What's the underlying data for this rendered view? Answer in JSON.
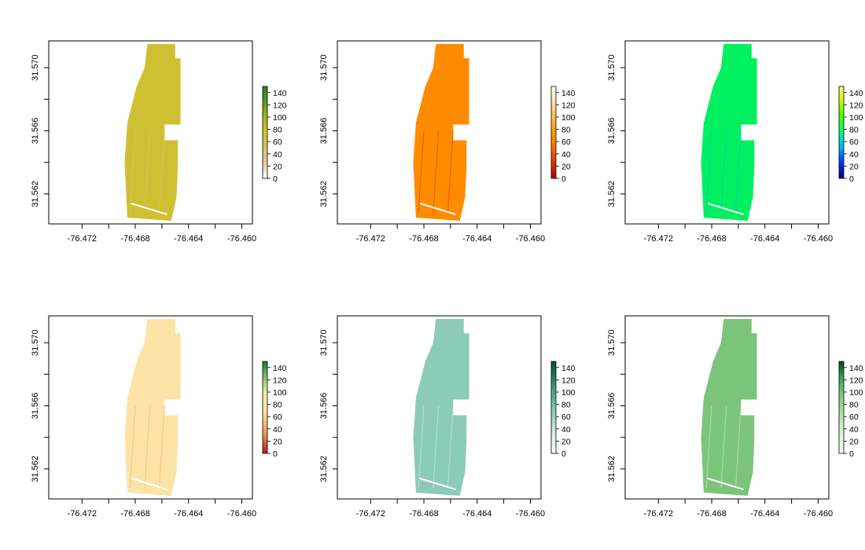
{
  "chart_data": [
    {
      "type": "heatmap",
      "xlim": [
        -76.4745,
        -76.4592
      ],
      "ylim": [
        31.5601,
        31.5717
      ],
      "x_ticks": [
        -76.472,
        -76.468,
        -76.464,
        -76.46
      ],
      "x_tick_labels": [
        "-76.472",
        "-76.468",
        "-76.464",
        "-76.460"
      ],
      "x_minor_ticks": [
        -76.47,
        -76.466,
        -76.462
      ],
      "y_ticks": [
        31.562,
        31.566,
        31.57
      ],
      "y_tick_labels": [
        "31.562",
        "31.566",
        "31.570"
      ],
      "y_minor_ticks": [
        31.564,
        31.568
      ],
      "legend": {
        "range": [
          0,
          150
        ],
        "ticks": [
          0,
          20,
          40,
          60,
          80,
          100,
          120,
          140
        ],
        "tick_labels": [
          "0",
          "20",
          "40",
          "60",
          "80",
          "100",
          "120",
          "140"
        ],
        "colors": [
          "#ffffff",
          "#e8c8a0",
          "#d8c060",
          "#cfc530",
          "#a0b820",
          "#5a9a20",
          "#2e7d1f"
        ]
      },
      "field_typical_value": 65,
      "field_color": "#cfc033"
    },
    {
      "type": "heatmap",
      "xlim": [
        -76.4745,
        -76.4592
      ],
      "ylim": [
        31.5601,
        31.5717
      ],
      "x_ticks": [
        -76.472,
        -76.468,
        -76.464,
        -76.46
      ],
      "x_tick_labels": [
        "-76.472",
        "-76.468",
        "-76.464",
        "-76.460"
      ],
      "x_minor_ticks": [
        -76.47,
        -76.466,
        -76.462
      ],
      "y_ticks": [
        31.562,
        31.566,
        31.57
      ],
      "y_tick_labels": [
        "31.562",
        "31.566",
        "31.570"
      ],
      "y_minor_ticks": [
        31.564,
        31.568
      ],
      "legend": {
        "range": [
          0,
          150
        ],
        "ticks": [
          0,
          20,
          40,
          60,
          80,
          100,
          120,
          140
        ],
        "tick_labels": [
          "0",
          "20",
          "40",
          "60",
          "80",
          "100",
          "120",
          "140"
        ],
        "colors": [
          "#b20000",
          "#e03000",
          "#ff6a00",
          "#ff9a00",
          "#ffc040",
          "#ffe4a0",
          "#ffffff"
        ]
      },
      "field_typical_value": 45,
      "field_color": "#ff8c00"
    },
    {
      "type": "heatmap",
      "xlim": [
        -76.4745,
        -76.4592
      ],
      "ylim": [
        31.5601,
        31.5717
      ],
      "x_ticks": [
        -76.472,
        -76.468,
        -76.464,
        -76.46
      ],
      "x_tick_labels": [
        "-76.472",
        "-76.468",
        "-76.464",
        "-76.460"
      ],
      "x_minor_ticks": [
        -76.47,
        -76.466,
        -76.462
      ],
      "y_ticks": [
        31.562,
        31.566,
        31.57
      ],
      "y_tick_labels": [
        "31.562",
        "31.566",
        "31.570"
      ],
      "y_minor_ticks": [
        31.564,
        31.568
      ],
      "legend": {
        "range": [
          0,
          150
        ],
        "ticks": [
          0,
          20,
          40,
          60,
          80,
          100,
          120,
          140
        ],
        "tick_labels": [
          "0",
          "20",
          "40",
          "60",
          "80",
          "100",
          "120",
          "140"
        ],
        "colors": [
          "#000080",
          "#0030ff",
          "#00b0ff",
          "#00ff80",
          "#40ff00",
          "#c0ff00",
          "#fff080"
        ]
      },
      "field_typical_value": 75,
      "field_color": "#00f060"
    },
    {
      "type": "heatmap",
      "xlim": [
        -76.4745,
        -76.4592
      ],
      "ylim": [
        31.5601,
        31.5717
      ],
      "x_ticks": [
        -76.472,
        -76.468,
        -76.464,
        -76.46
      ],
      "x_tick_labels": [
        "-76.472",
        "-76.468",
        "-76.464",
        "-76.460"
      ],
      "x_minor_ticks": [
        -76.47,
        -76.466,
        -76.462
      ],
      "y_ticks": [
        31.562,
        31.566,
        31.57
      ],
      "y_tick_labels": [
        "31.562",
        "31.566",
        "31.570"
      ],
      "y_minor_ticks": [
        31.564,
        31.568
      ],
      "legend": {
        "range": [
          0,
          150
        ],
        "ticks": [
          0,
          20,
          40,
          60,
          80,
          100,
          120,
          140
        ],
        "tick_labels": [
          "0",
          "20",
          "40",
          "60",
          "80",
          "100",
          "120",
          "140"
        ],
        "colors": [
          "#b2182b",
          "#e08040",
          "#f7c07a",
          "#fbe8a8",
          "#e0f0a0",
          "#80c070",
          "#1a7837"
        ]
      },
      "field_typical_value": 65,
      "field_color": "#fbe4a6"
    },
    {
      "type": "heatmap",
      "xlim": [
        -76.4745,
        -76.4592
      ],
      "ylim": [
        31.5601,
        31.5717
      ],
      "x_ticks": [
        -76.472,
        -76.468,
        -76.464,
        -76.46
      ],
      "x_tick_labels": [
        "-76.472",
        "-76.468",
        "-76.464",
        "-76.460"
      ],
      "x_minor_ticks": [
        -76.47,
        -76.466,
        -76.462
      ],
      "y_ticks": [
        31.562,
        31.566,
        31.57
      ],
      "y_tick_labels": [
        "31.562",
        "31.566",
        "31.570"
      ],
      "y_minor_ticks": [
        31.564,
        31.568
      ],
      "legend": {
        "range": [
          0,
          150
        ],
        "ticks": [
          0,
          20,
          40,
          60,
          80,
          100,
          120,
          140
        ],
        "tick_labels": [
          "0",
          "20",
          "40",
          "60",
          "80",
          "100",
          "120",
          "140"
        ],
        "colors": [
          "#ffffff",
          "#e0f3ef",
          "#b0dccf",
          "#7cc4b0",
          "#48a88a",
          "#1f7c5c",
          "#004d35"
        ]
      },
      "field_typical_value": 45,
      "field_color": "#8ccbb8"
    },
    {
      "type": "heatmap",
      "xlim": [
        -76.4745,
        -76.4592
      ],
      "ylim": [
        31.5601,
        31.5717
      ],
      "x_ticks": [
        -76.472,
        -76.468,
        -76.464,
        -76.46
      ],
      "x_tick_labels": [
        "-76.472",
        "-76.468",
        "-76.464",
        "-76.460"
      ],
      "x_minor_ticks": [
        -76.47,
        -76.466,
        -76.462
      ],
      "y_ticks": [
        31.562,
        31.566,
        31.57
      ],
      "y_tick_labels": [
        "31.562",
        "31.566",
        "31.570"
      ],
      "y_minor_ticks": [
        31.564,
        31.568
      ],
      "legend": {
        "range": [
          0,
          150
        ],
        "ticks": [
          0,
          20,
          40,
          60,
          80,
          100,
          120,
          140
        ],
        "tick_labels": [
          "0",
          "20",
          "40",
          "60",
          "80",
          "100",
          "120",
          "140"
        ],
        "colors": [
          "#ffffff",
          "#e5f5e0",
          "#c7e9c0",
          "#a1d99b",
          "#74c476",
          "#31a354",
          "#00441b"
        ]
      },
      "field_typical_value": 50,
      "field_color": "#7cc47a"
    }
  ]
}
